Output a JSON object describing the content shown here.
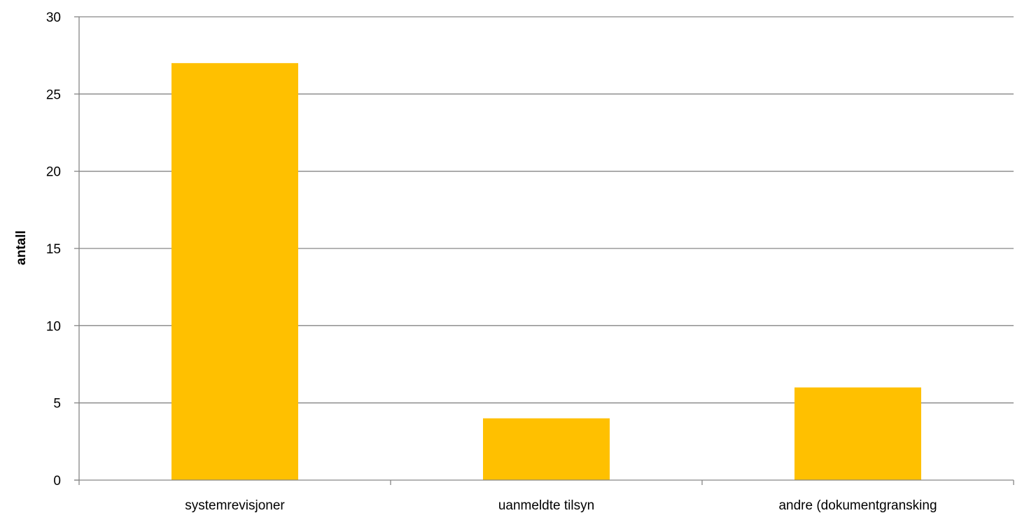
{
  "chart_data": {
    "type": "bar",
    "title": "",
    "xlabel": "",
    "ylabel": "antall",
    "categories": [
      "systemrevisjoner",
      "uanmeldte tilsyn",
      "andre (dokumentgransking"
    ],
    "values": [
      27,
      4,
      6
    ],
    "ylim": [
      0,
      30
    ],
    "yticks": [
      0,
      5,
      10,
      15,
      20,
      25,
      30
    ],
    "grid": true,
    "legend": "none",
    "bar_color": "#FFC000",
    "grid_color": "#868686"
  }
}
